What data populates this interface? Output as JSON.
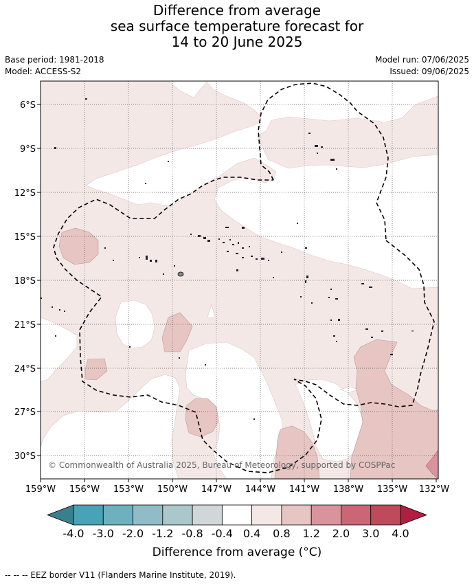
{
  "title": {
    "line1": "Difference from average",
    "line2": "sea surface temperature forecast for",
    "line3": "14 to 20 June 2025"
  },
  "meta": {
    "base_period": "Base period: 1981-2018",
    "model": "Model: ACCESS-S2",
    "model_run": "Model run: 07/06/2025",
    "issued": "Issued: 09/06/2025"
  },
  "map": {
    "lat_ticks": [
      "6°S",
      "9°S",
      "12°S",
      "15°S",
      "18°S",
      "21°S",
      "24°S",
      "27°S",
      "30°S"
    ],
    "lon_ticks": [
      "159°W",
      "156°W",
      "153°W",
      "150°W",
      "147°W",
      "144°W",
      "141°W",
      "138°W",
      "135°W",
      "132°W"
    ],
    "copyright": "© Commonwealth of Australia 2025, Bureau of Meteorology, supported by COSPPac",
    "colors": {
      "light_pink": "#f4e8e7",
      "pink": "#e6c5c2",
      "rose": "#d8949a",
      "red": "#c04a5a",
      "white": "#ffffff",
      "land": "#222222",
      "grid": "#555555"
    }
  },
  "colorbar": {
    "labels": [
      "-4.0",
      "-3.0",
      "-2.0",
      "-1.2",
      "-0.8",
      "-0.4",
      "0.4",
      "0.8",
      "1.2",
      "2.0",
      "3.0",
      "4.0"
    ],
    "colors": [
      "#3a7f8c",
      "#47a3b5",
      "#6fb0bf",
      "#8fbcc7",
      "#aac8cc",
      "#d1d7d9",
      "#ffffff",
      "#f4e8e7",
      "#e6c5c2",
      "#d8949a",
      "#cc6674",
      "#c04a5a",
      "#b01e40"
    ],
    "title": "Difference from average (°C)"
  },
  "footnote": "-- -- -- EEZ border V11 (Flanders Marine Institute, 2019)."
}
